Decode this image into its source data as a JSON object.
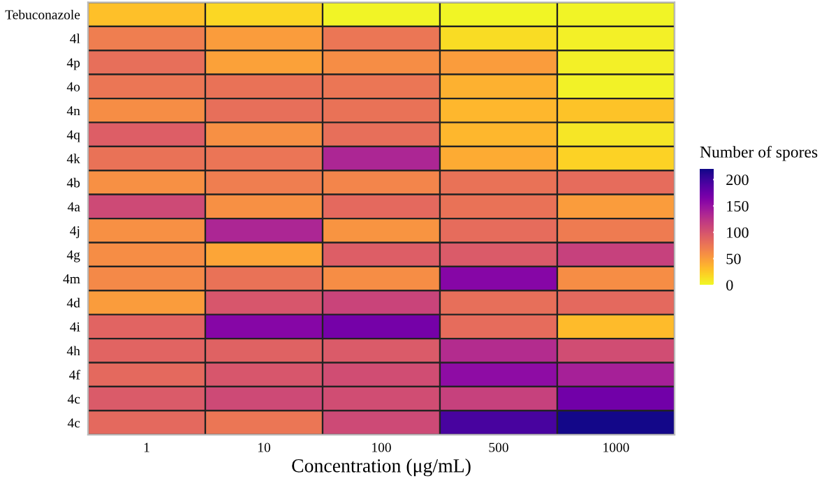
{
  "chart_data": {
    "type": "heatmap",
    "xlabel": "Concentration (μg/mL)",
    "clabel": "Number of spores",
    "categories": [
      "1",
      "10",
      "100",
      "500",
      "1000"
    ],
    "y_categories": [
      "Tebuconazole",
      "4l",
      "4p",
      "4o",
      "4n",
      "4q",
      "4k",
      "4b",
      "4a",
      "4j",
      "4g",
      "4m",
      "4d",
      "4i",
      "4h",
      "4f",
      "4c",
      "4c"
    ],
    "cells": [
      [
        30,
        18,
        3,
        2,
        3
      ],
      [
        70,
        50,
        75,
        15,
        5
      ],
      [
        80,
        48,
        60,
        50,
        5
      ],
      [
        75,
        78,
        75,
        38,
        4
      ],
      [
        60,
        80,
        78,
        35,
        28
      ],
      [
        92,
        58,
        80,
        35,
        10
      ],
      [
        78,
        76,
        135,
        42,
        20
      ],
      [
        58,
        70,
        65,
        78,
        82
      ],
      [
        108,
        58,
        85,
        78,
        50
      ],
      [
        58,
        135,
        55,
        82,
        72
      ],
      [
        60,
        45,
        92,
        95,
        115
      ],
      [
        62,
        78,
        60,
        160,
        60
      ],
      [
        50,
        98,
        112,
        80,
        85
      ],
      [
        88,
        160,
        170,
        82,
        32
      ],
      [
        88,
        90,
        95,
        130,
        105
      ],
      [
        85,
        98,
        105,
        155,
        140
      ],
      [
        95,
        108,
        105,
        115,
        172
      ],
      [
        85,
        75,
        108,
        195,
        218
      ]
    ],
    "clim": [
      0,
      220
    ],
    "cticks": [
      0,
      50,
      100,
      150,
      200
    ]
  }
}
